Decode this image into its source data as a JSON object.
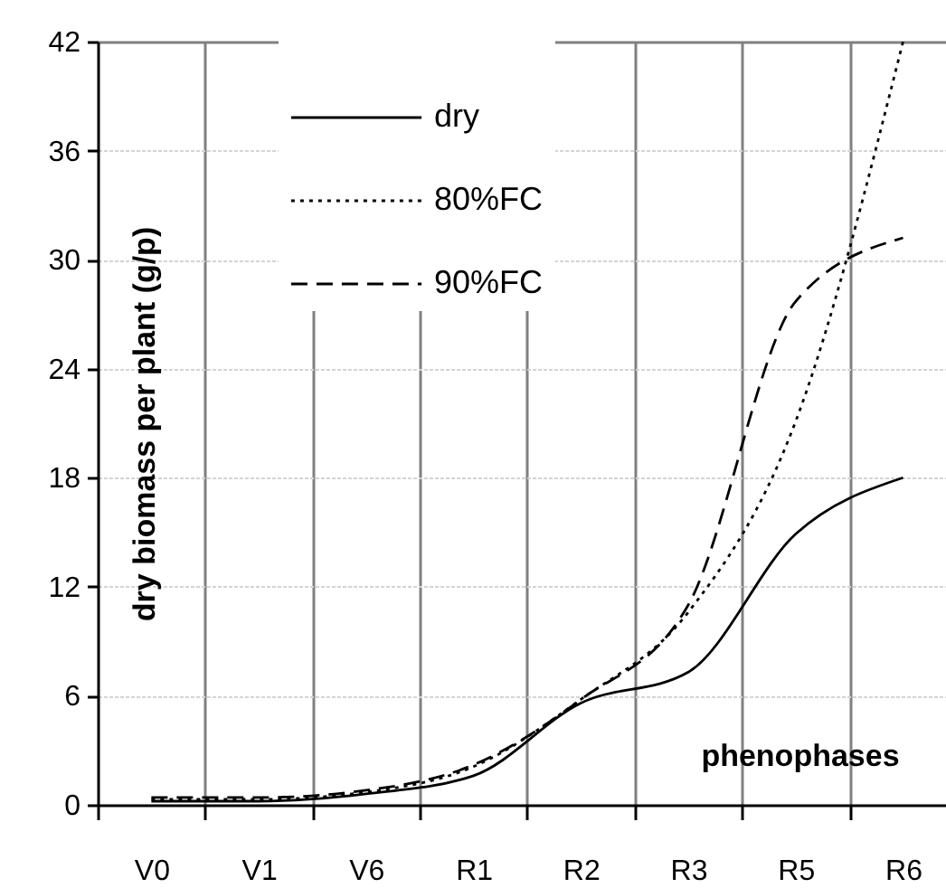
{
  "chart_data": {
    "type": "line",
    "xlabel": "phenophases",
    "ylabel": "dry biomass per plant (g/p)",
    "categories": [
      "V0",
      "V1",
      "V6",
      "R1",
      "R2",
      "R3",
      "R5",
      "R6"
    ],
    "ylim": [
      0,
      42
    ],
    "yticks": [
      0,
      6,
      12,
      18,
      24,
      30,
      36,
      42
    ],
    "grid": true,
    "legend": "top left",
    "series": [
      {
        "name": "dry",
        "color": "#000000",
        "line_style": "solid",
        "values": [
          0.2,
          0.2,
          0.6,
          1.6,
          5.6,
          7.3,
          14.9,
          18
        ]
      },
      {
        "name": "80%FC",
        "color": "#000000",
        "line_style": "dotted",
        "values": [
          0.3,
          0.3,
          0.7,
          2.1,
          5.8,
          10.6,
          21.1,
          42
        ]
      },
      {
        "name": "90%FC",
        "color": "#000000",
        "line_style": "dashed",
        "values": [
          0.4,
          0.4,
          0.8,
          2.2,
          5.8,
          11,
          27.7,
          31.2
        ]
      }
    ]
  }
}
